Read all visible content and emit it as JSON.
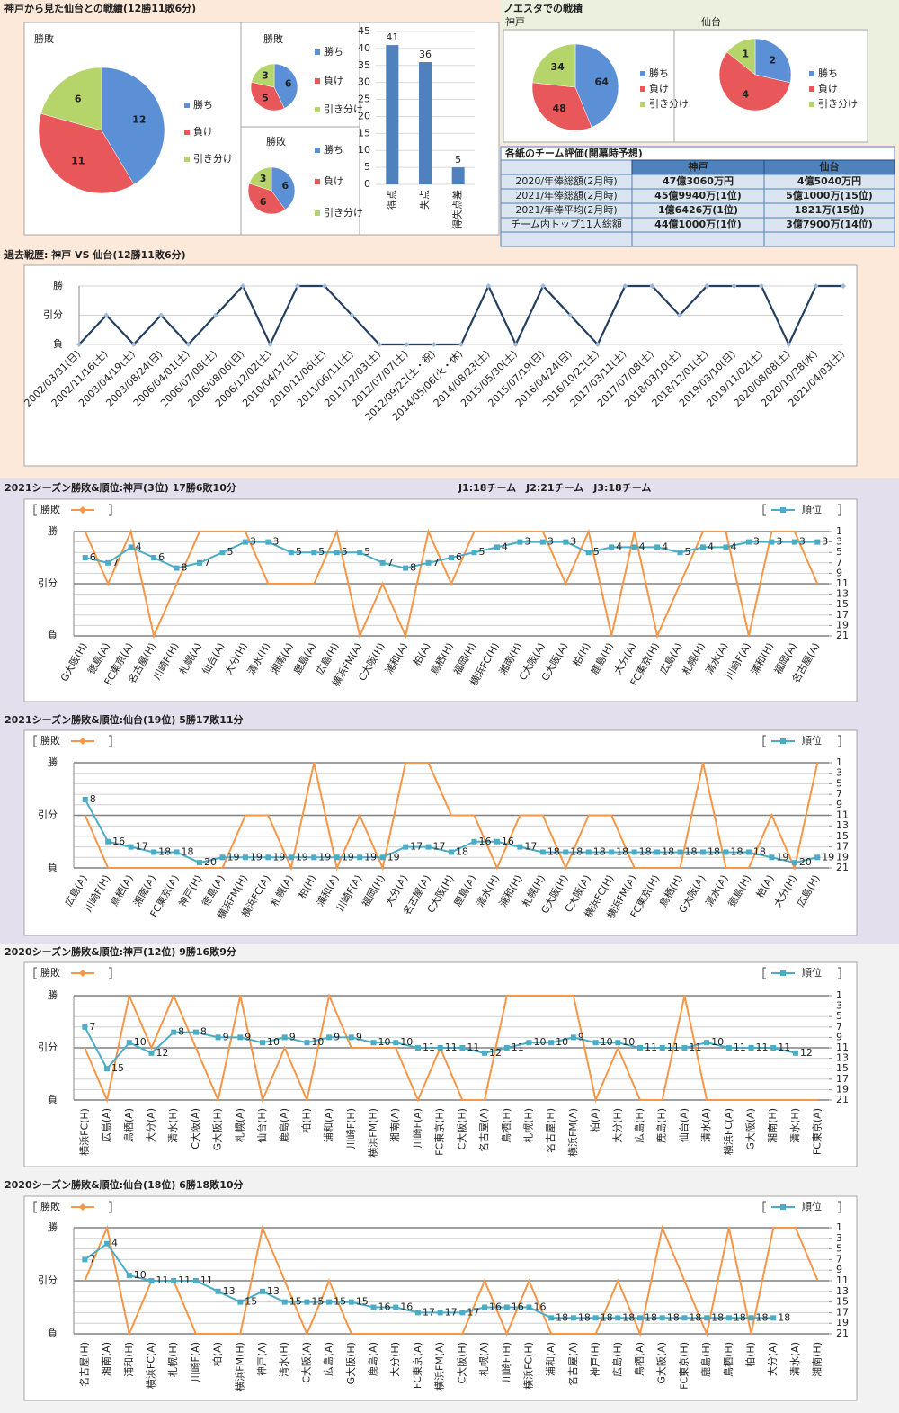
{
  "chart_data": [
    {
      "type": "pie",
      "section_title": "神戸から見た仙台との戦績(12勝11敗6分)",
      "title": "勝敗",
      "categories": [
        "勝ち",
        "負け",
        "引き分け"
      ],
      "values": [
        12,
        11,
        6
      ],
      "colors": [
        "#5b8fd6",
        "#e8585a",
        "#b5d46a"
      ]
    },
    {
      "type": "pie",
      "title": "勝敗",
      "categories": [
        "勝ち",
        "負け",
        "引き分け"
      ],
      "values": [
        6,
        5,
        3
      ],
      "colors": [
        "#5b8fd6",
        "#e8585a",
        "#b5d46a"
      ]
    },
    {
      "type": "pie",
      "title": "勝敗",
      "categories": [
        "勝ち",
        "負け",
        "引き分け"
      ],
      "values": [
        6,
        6,
        3
      ],
      "colors": [
        "#5b8fd6",
        "#e8585a",
        "#b5d46a"
      ]
    },
    {
      "type": "bar",
      "categories": [
        "得点",
        "失点",
        "得失点差"
      ],
      "values": [
        41,
        36,
        5
      ],
      "color": "#4f81bd",
      "ylim": [
        0,
        45
      ],
      "yticks": [
        0,
        5,
        10,
        15,
        20,
        25,
        30,
        35,
        40,
        45
      ],
      "grid": true
    },
    {
      "type": "pie",
      "section_title": "ノエスタでの戦積",
      "title": "神戸",
      "categories": [
        "勝ち",
        "負け",
        "引き分け"
      ],
      "values": [
        64,
        48,
        34
      ],
      "colors": [
        "#5b8fd6",
        "#e8585a",
        "#b5d46a"
      ]
    },
    {
      "type": "pie",
      "title": "仙台",
      "categories": [
        "勝ち",
        "負け",
        "引き分け"
      ],
      "values": [
        2,
        4,
        1
      ],
      "colors": [
        "#5b8fd6",
        "#e8585a",
        "#b5d46a"
      ]
    },
    {
      "type": "line",
      "title": "過去戦歴: 神戸 VS 仙台(12勝11敗6分)",
      "categories": [
        "2002/03/31(日)",
        "2002/11/16(土)",
        "2003/04/19(土)",
        "2003/08/24(日)",
        "2006/04/01(土)",
        "2006/07/08(土)",
        "2006/08/06(日)",
        "2006/12/02(土)",
        "2010/04/17(土)",
        "2010/11/06(土)",
        "2011/06/11(土)",
        "2011/12/03(土)",
        "2012/07/07(土)",
        "2012/09/22(土・祝)",
        "2014/05/06(火・休)",
        "2014/08/23(土)",
        "2015/05/30(土)",
        "2015/07/19(日)",
        "2016/04/24(日)",
        "2016/10/22(土)",
        "2017/03/11(土)",
        "2017/07/08(土)",
        "2018/03/10(土)",
        "2018/12/01(土)",
        "2019/03/10(日)",
        "2019/11/02(土)",
        "2020/08/08(土)",
        "2020/10/28(水)",
        "2021/04/03(土)"
      ],
      "values": [
        0,
        1,
        0,
        1,
        0,
        1,
        2,
        0,
        2,
        2,
        1,
        0,
        0,
        0,
        0,
        2,
        0,
        2,
        1,
        0,
        2,
        2,
        1,
        2,
        2,
        2,
        0,
        2,
        2
      ],
      "color": "#243f60",
      "ylim": [
        0,
        2
      ],
      "yticks": [
        {
          "value": 0,
          "label": "負"
        },
        {
          "value": 1,
          "label": "引分"
        },
        {
          "value": 2,
          "label": "勝"
        }
      ],
      "grid": true
    },
    {
      "type": "line",
      "title": "2021シーズン勝敗&順位:神戸(3位) 17勝6敗10分",
      "note": "J1:18チーム　J2:21チーム　J3:18チーム",
      "categories": [
        "G大阪(H)",
        "徳島(A)",
        "FC東京(A)",
        "名古屋(H)",
        "川崎F(H)",
        "札幌(A)",
        "仙台(A)",
        "大分(H)",
        "清水(H)",
        "湘南(A)",
        "鹿島(A)",
        "広島(H)",
        "横浜FM(A)",
        "C大阪(H)",
        "浦和(A)",
        "柏(A)",
        "鳥栖(H)",
        "福岡(H)",
        "横浜FC(H)",
        "湘南(H)",
        "C大阪(A)",
        "G大阪(A)",
        "柏(H)",
        "鹿島(H)",
        "大分(A)",
        "FC東京(H)",
        "広島(A)",
        "札幌(H)",
        "清水(A)",
        "川崎F(A)",
        "浦和(H)",
        "福岡(A)",
        "名古屋(A)"
      ],
      "series": [
        {
          "name": "勝敗",
          "color": "#f79646",
          "marker": "diamond",
          "values": [
            2,
            1,
            2,
            0,
            1,
            2,
            2,
            2,
            1,
            1,
            1,
            2,
            0,
            1,
            0,
            2,
            1,
            2,
            2,
            2,
            2,
            1,
            2,
            0,
            2,
            0,
            1,
            2,
            2,
            0,
            2,
            2,
            1
          ]
        },
        {
          "name": "順位",
          "color": "#4bacc6",
          "marker": "square",
          "axis": "y2",
          "data_labels": true,
          "values": [
            6,
            7,
            4,
            6,
            8,
            7,
            5,
            3,
            3,
            5,
            5,
            5,
            5,
            7,
            8,
            7,
            6,
            5,
            4,
            3,
            3,
            3,
            5,
            4,
            4,
            4,
            5,
            4,
            4,
            3,
            3,
            3,
            3
          ]
        }
      ],
      "ylim": [
        0,
        2
      ],
      "yticks": [
        {
          "value": 0,
          "label": "負"
        },
        {
          "value": 1,
          "label": "引分"
        },
        {
          "value": 2,
          "label": "勝"
        }
      ],
      "y2lim": [
        21,
        1
      ],
      "y2ticks": [
        1,
        3,
        5,
        7,
        9,
        11,
        13,
        15,
        17,
        19,
        21
      ],
      "grid": true
    },
    {
      "type": "line",
      "title": "2021シーズン勝敗&順位:仙台(19位) 5勝17敗11分",
      "categories": [
        "広島(A)",
        "川崎F(H)",
        "鳥栖(A)",
        "湘南(A)",
        "FC東京(A)",
        "神戸(H)",
        "徳島(A)",
        "横浜FM(H)",
        "横浜FC(A)",
        "札幌(A)",
        "柏(H)",
        "浦和(A)",
        "川崎F(A)",
        "福岡(H)",
        "大分(A)",
        "名古屋(A)",
        "C大阪(H)",
        "鹿島(A)",
        "清水(H)",
        "浦和(H)",
        "札幌(H)",
        "G大阪(H)",
        "C大阪(A)",
        "横浜FC(H)",
        "横浜FM(A)",
        "FC東京(H)",
        "鳥栖(H)",
        "G大阪(A)",
        "清水(A)",
        "徳島(H)",
        "柏(A)",
        "大分(H)",
        "広島(H)"
      ],
      "series": [
        {
          "name": "勝敗",
          "color": "#f79646",
          "marker": "diamond",
          "values": [
            1,
            0,
            0,
            0,
            0,
            0,
            0,
            1,
            1,
            0,
            2,
            0,
            1,
            0,
            2,
            2,
            1,
            1,
            0,
            1,
            1,
            0,
            1,
            1,
            0,
            0,
            0,
            2,
            0,
            0,
            1,
            0,
            2
          ]
        },
        {
          "name": "順位",
          "color": "#4bacc6",
          "marker": "square",
          "axis": "y2",
          "data_labels": true,
          "values": [
            8,
            16,
            17,
            18,
            18,
            20,
            19,
            19,
            19,
            19,
            19,
            19,
            19,
            19,
            17,
            17,
            18,
            16,
            16,
            17,
            18,
            18,
            18,
            18,
            18,
            18,
            18,
            18,
            18,
            18,
            19,
            20,
            19
          ]
        }
      ],
      "ylim": [
        0,
        2
      ],
      "yticks": [
        {
          "value": 0,
          "label": "負"
        },
        {
          "value": 1,
          "label": "引分"
        },
        {
          "value": 2,
          "label": "勝"
        }
      ],
      "y2lim": [
        21,
        1
      ],
      "y2ticks": [
        1,
        3,
        5,
        7,
        9,
        11,
        13,
        15,
        17,
        19,
        21
      ],
      "grid": true
    },
    {
      "type": "line",
      "title": "2020シーズン勝敗&順位:神戸(12位) 9勝16敗9分",
      "categories": [
        "横浜FC(H)",
        "広島(A)",
        "鳥栖(A)",
        "大分(A)",
        "清水(H)",
        "C大阪(A)",
        "G大阪(H)",
        "札幌(A)",
        "仙台(H)",
        "鹿島(A)",
        "柏(H)",
        "浦和(A)",
        "川崎F(H)",
        "横浜FM(H)",
        "湘南(A)",
        "川崎F(A)",
        "FC東京(H)",
        "C大阪(H)",
        "名古屋(A)",
        "鳥栖(H)",
        "札幌(H)",
        "名古屋(H)",
        "横浜FM(A)",
        "柏(A)",
        "大分(H)",
        "広島(H)",
        "鹿島(H)",
        "仙台(A)",
        "清水(A)",
        "横浜FC(A)",
        "G大阪(A)",
        "湘南(H)",
        "清水(H)",
        "FC東京(A)"
      ],
      "series": [
        {
          "name": "勝敗",
          "color": "#f79646",
          "marker": "diamond",
          "values": [
            1,
            0,
            2,
            1,
            2,
            1,
            0,
            2,
            0,
            1,
            0,
            2,
            1,
            1,
            1,
            0,
            1,
            0,
            0,
            2,
            2,
            2,
            2,
            0,
            1,
            0,
            0,
            2,
            0,
            0,
            0,
            0,
            0,
            0
          ]
        },
        {
          "name": "順位",
          "color": "#4bacc6",
          "marker": "square",
          "axis": "y2",
          "data_labels": true,
          "values": [
            7,
            15,
            10,
            12,
            8,
            8,
            9,
            9,
            10,
            9,
            10,
            9,
            9,
            10,
            10,
            11,
            11,
            11,
            12,
            11,
            10,
            10,
            9,
            10,
            10,
            11,
            11,
            11,
            10,
            11,
            11,
            11,
            12,
            null
          ]
        }
      ],
      "ylim": [
        0,
        2
      ],
      "yticks": [
        {
          "value": 0,
          "label": "負"
        },
        {
          "value": 1,
          "label": "引分"
        },
        {
          "value": 2,
          "label": "勝"
        }
      ],
      "y2lim": [
        21,
        1
      ],
      "y2ticks": [
        1,
        3,
        5,
        7,
        9,
        11,
        13,
        15,
        17,
        19,
        21
      ],
      "grid": true
    },
    {
      "type": "line",
      "title": "2020シーズン勝敗&順位:仙台(18位) 6勝18敗10分",
      "categories": [
        "名古屋(H)",
        "湘南(A)",
        "浦和(H)",
        "横浜FC(A)",
        "札幌(H)",
        "川崎F(A)",
        "柏(A)",
        "横浜FM(H)",
        "神戸(A)",
        "清水(H)",
        "C大阪(A)",
        "広島(A)",
        "G大阪(H)",
        "鹿島(A)",
        "大分(H)",
        "FC東京(A)",
        "横浜FM(A)",
        "C大阪(H)",
        "札幌(A)",
        "川崎F(H)",
        "横浜FC(H)",
        "浦和(A)",
        "名古屋(A)",
        "神戸(H)",
        "広島(H)",
        "鳥栖(A)",
        "G大阪(A)",
        "FC東京(H)",
        "鹿島(H)",
        "鳥栖(H)",
        "柏(H)",
        "大分(A)",
        "清水(A)",
        "湘南(H)"
      ],
      "series": [
        {
          "name": "勝敗",
          "color": "#f79646",
          "marker": "diamond",
          "values": [
            1,
            2,
            0,
            1,
            1,
            0,
            0,
            0,
            2,
            1,
            0,
            1,
            0,
            0,
            0,
            0,
            0,
            0,
            1,
            0,
            1,
            0,
            0,
            0,
            1,
            0,
            2,
            1,
            0,
            2,
            0,
            2,
            2,
            1
          ]
        },
        {
          "name": "順位",
          "color": "#4bacc6",
          "marker": "square",
          "axis": "y2",
          "data_labels": true,
          "values": [
            7,
            4,
            10,
            11,
            11,
            11,
            13,
            15,
            13,
            15,
            15,
            15,
            15,
            16,
            16,
            17,
            17,
            17,
            16,
            16,
            16,
            18,
            18,
            18,
            18,
            18,
            18,
            18,
            18,
            18,
            18,
            18,
            null,
            null
          ]
        }
      ],
      "ylim": [
        0,
        2
      ],
      "yticks": [
        {
          "value": 0,
          "label": "負"
        },
        {
          "value": 1,
          "label": "引分"
        },
        {
          "value": 2,
          "label": "勝"
        }
      ],
      "y2lim": [
        21,
        1
      ],
      "y2ticks": [
        1,
        3,
        5,
        7,
        9,
        11,
        13,
        15,
        17,
        19,
        21
      ],
      "grid": true
    }
  ],
  "table": {
    "title": "各紙のチーム評価(開幕時予想)",
    "header": [
      "神戸",
      "仙台"
    ],
    "rows": [
      [
        "2020/年俸総額(2月時)",
        "47億3060万円",
        "4億5040万円"
      ],
      [
        "2021/年俸総額(2月時)",
        "45億9940万(1位)",
        "5億1000万(15位)"
      ],
      [
        "2021/年俸平均(2月時)",
        "1億6426万(1位)",
        "1821万(15位)"
      ],
      [
        "チーム内トップ11人総額",
        "44億1000万(1位)",
        "3億7900万(14位)"
      ]
    ]
  }
}
